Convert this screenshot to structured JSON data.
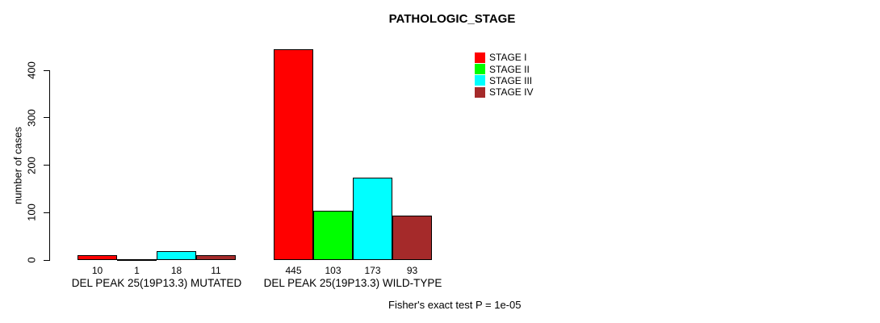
{
  "chart_data": {
    "type": "bar",
    "title": "PATHOLOGIC_STAGE",
    "ylabel": "number of cases",
    "xlabel": "",
    "ylim": [
      0,
      445
    ],
    "yticks": [
      0,
      100,
      200,
      300,
      400
    ],
    "grid": false,
    "legend_position": "top-right",
    "categories": [
      "DEL PEAK 25(19P13.3) MUTATED",
      "DEL PEAK 25(19P13.3) WILD-TYPE"
    ],
    "series": [
      {
        "name": "STAGE I",
        "color": "#ff0000",
        "values": [
          10,
          445
        ]
      },
      {
        "name": "STAGE II",
        "color": "#00ff00",
        "values": [
          1,
          103
        ]
      },
      {
        "name": "STAGE III",
        "color": "#00ffff",
        "values": [
          18,
          173
        ]
      },
      {
        "name": "STAGE IV",
        "color": "#a52a2a",
        "values": [
          11,
          93
        ]
      }
    ],
    "bar_value_labels": [
      [
        10,
        1,
        18,
        11
      ],
      [
        445,
        103,
        173,
        93
      ]
    ],
    "annotation": "Fisher's exact test P = 1e-05"
  }
}
